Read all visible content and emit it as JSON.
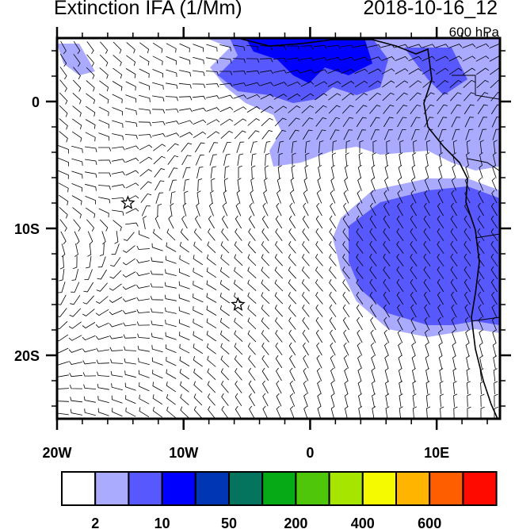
{
  "header": {
    "title": "Extinction IFA (1/Mm)",
    "date": "2018-10-16_12",
    "level": "600 hPa"
  },
  "map": {
    "lon_range": [
      -20,
      15
    ],
    "lat_range": [
      -25,
      5
    ],
    "lon_ticks": [
      {
        "value": -20,
        "label": "20W"
      },
      {
        "value": -10,
        "label": "10W"
      },
      {
        "value": 0,
        "label": "0"
      },
      {
        "value": 10,
        "label": "10E"
      }
    ],
    "lat_ticks": [
      {
        "value": 0,
        "label": "0"
      },
      {
        "value": -10,
        "label": "10S"
      },
      {
        "value": -20,
        "label": "20S"
      }
    ],
    "markers": [
      {
        "type": "star",
        "lon": -14.4,
        "lat": -8.0
      },
      {
        "type": "star",
        "lon": -5.7,
        "lat": -16.0
      }
    ],
    "overlay": "wind-barbs"
  },
  "colorbar": {
    "colors": [
      "#ffffff",
      "#aaaaff",
      "#5858ff",
      "#0000ff",
      "#0036b4",
      "#04745e",
      "#05aa16",
      "#4fc60a",
      "#a6e500",
      "#f5fa00",
      "#ffb400",
      "#ff5e00",
      "#ff0a00"
    ],
    "labels": [
      {
        "boundary": 1,
        "text": "2"
      },
      {
        "boundary": 3,
        "text": "10"
      },
      {
        "boundary": 5,
        "text": "50"
      },
      {
        "boundary": 7,
        "text": "200"
      },
      {
        "boundary": 9,
        "text": "400"
      },
      {
        "boundary": 11,
        "text": "600"
      }
    ]
  }
}
